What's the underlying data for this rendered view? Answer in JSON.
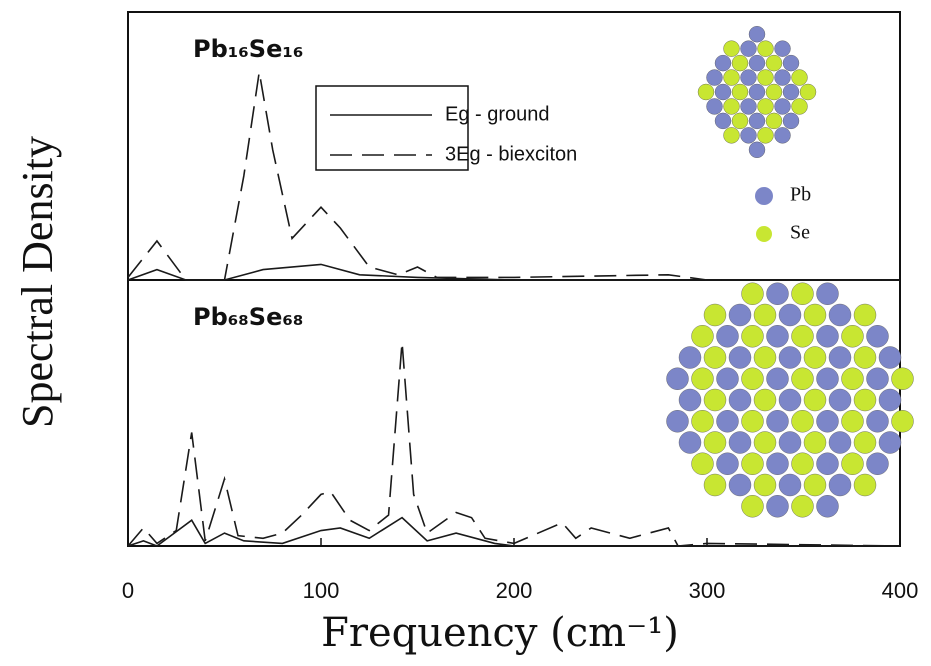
{
  "chart_data": [
    {
      "type": "line",
      "title": "Pb₁₆Se₁₆",
      "ylabel": "Spectral Density",
      "legend": "top-center",
      "atom_labels": [
        "Pb",
        "Se"
      ],
      "xlim": [
        0,
        400
      ],
      "ylim": [
        0,
        100
      ],
      "series": [
        {
          "name": "Eg - ground",
          "color": "#1a1a1a",
          "dash": false,
          "x": [
            0,
            15,
            30,
            50,
            70,
            100,
            120,
            150,
            200,
            400
          ],
          "values": [
            0,
            4,
            0,
            0,
            4,
            6,
            2,
            1,
            0,
            0
          ]
        },
        {
          "name": "3Eg - biexciton",
          "color": "#1a1a1a",
          "dash": true,
          "x": [
            0,
            15,
            30,
            50,
            60,
            68,
            75,
            85,
            100,
            110,
            125,
            140,
            150,
            160,
            200,
            280,
            300,
            400
          ],
          "values": [
            1,
            15,
            0,
            0,
            40,
            80,
            50,
            16,
            28,
            20,
            5,
            2,
            5,
            1,
            1,
            2,
            0,
            0
          ]
        }
      ]
    },
    {
      "type": "line",
      "title": "Pb₆₈Se₆₈",
      "xlabel": "Frequency (cm⁻¹)",
      "xlim": [
        0,
        400
      ],
      "ylim": [
        0,
        100
      ],
      "xticks": [
        0,
        100,
        200,
        300,
        400
      ],
      "series": [
        {
          "color": "#1a1a1a",
          "dash": false,
          "x": [
            0,
            8,
            15,
            33,
            40,
            50,
            60,
            80,
            100,
            110,
            125,
            142,
            155,
            170,
            190,
            200,
            400
          ],
          "values": [
            0,
            2,
            0,
            10,
            1,
            5,
            2,
            1,
            6,
            7,
            3,
            11,
            2,
            5,
            1,
            0,
            0
          ]
        },
        {
          "color": "#1a1a1a",
          "dash": true,
          "x": [
            0,
            8,
            15,
            25,
            33,
            40,
            50,
            57,
            70,
            80,
            90,
            100,
            105,
            115,
            125,
            135,
            142,
            148,
            155,
            170,
            178,
            185,
            200,
            225,
            232,
            240,
            260,
            280,
            285,
            300,
            400
          ],
          "values": [
            0,
            7,
            1,
            6,
            44,
            2,
            26,
            4,
            3,
            5,
            12,
            20,
            21,
            10,
            6,
            12,
            79,
            20,
            5,
            13,
            11,
            3,
            1,
            9,
            3,
            7,
            3,
            7,
            0,
            1,
            0
          ]
        }
      ]
    }
  ]
}
